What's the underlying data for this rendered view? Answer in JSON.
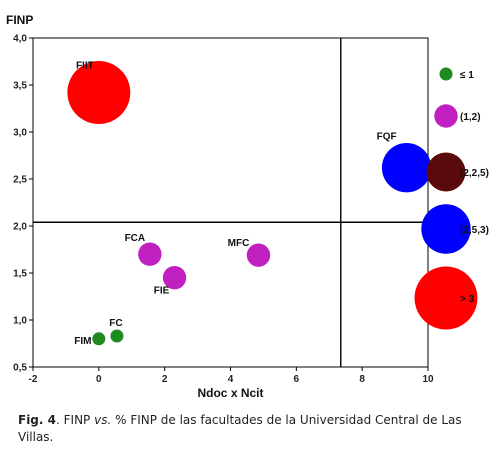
{
  "chart_data": {
    "type": "scatter",
    "title": "",
    "ylabel": "FINP",
    "xlabel": "Ndoc x Ncit",
    "xlim": [
      -2,
      10
    ],
    "ylim": [
      0.5,
      4.0
    ],
    "xticks": [
      -2,
      0,
      2,
      4,
      6,
      8,
      10
    ],
    "yticks": [
      "0,5",
      "1,0",
      "1,5",
      "2,0",
      "2,5",
      "3,0",
      "3,5",
      "4,0"
    ],
    "ytick_values": [
      0.5,
      1.0,
      1.5,
      2.0,
      2.5,
      3.0,
      3.5,
      4.0
    ],
    "reference_lines": {
      "x": 7.35,
      "y": 2.04
    },
    "grid": false,
    "legend_placement": "right",
    "legend": [
      {
        "label": "≤ 1",
        "color": "#1f8a1f",
        "bubble_value": 1.0
      },
      {
        "label": "(1,2)",
        "color": "#c020c0",
        "bubble_value": 1.5
      },
      {
        "label": "(2,2,5)",
        "color": "#5a0a0a",
        "bubble_value": 2.25
      },
      {
        "label": "(2,5,3)",
        "color": "#0000ff",
        "bubble_value": 2.75
      },
      {
        "label": "> 3",
        "color": "#ff0000",
        "bubble_value": 3.4
      }
    ],
    "points": [
      {
        "label": "FIIT",
        "x": 0.0,
        "y": 3.42,
        "size_value": 3.4,
        "color": "#ff0000"
      },
      {
        "label": "FQF",
        "x": 9.35,
        "y": 2.62,
        "size_value": 2.75,
        "color": "#0000ff"
      },
      {
        "label": "FCA",
        "x": 1.55,
        "y": 1.7,
        "size_value": 1.5,
        "color": "#c020c0"
      },
      {
        "label": "FIE",
        "x": 2.3,
        "y": 1.45,
        "size_value": 1.5,
        "color": "#c020c0"
      },
      {
        "label": "MFC",
        "x": 4.85,
        "y": 1.69,
        "size_value": 1.5,
        "color": "#c020c0"
      },
      {
        "label": "FC",
        "x": 0.55,
        "y": 0.83,
        "size_value": 1.0,
        "color": "#1f8a1f"
      },
      {
        "label": "FIM",
        "x": 0.0,
        "y": 0.8,
        "size_value": 1.0,
        "color": "#1f8a1f"
      }
    ]
  },
  "caption": {
    "fig": "Fig. 4",
    "part1": ". FINP ",
    "vs": "vs.",
    "part2": " % FINP de las facultades de la Universidad Central de Las Villas."
  }
}
